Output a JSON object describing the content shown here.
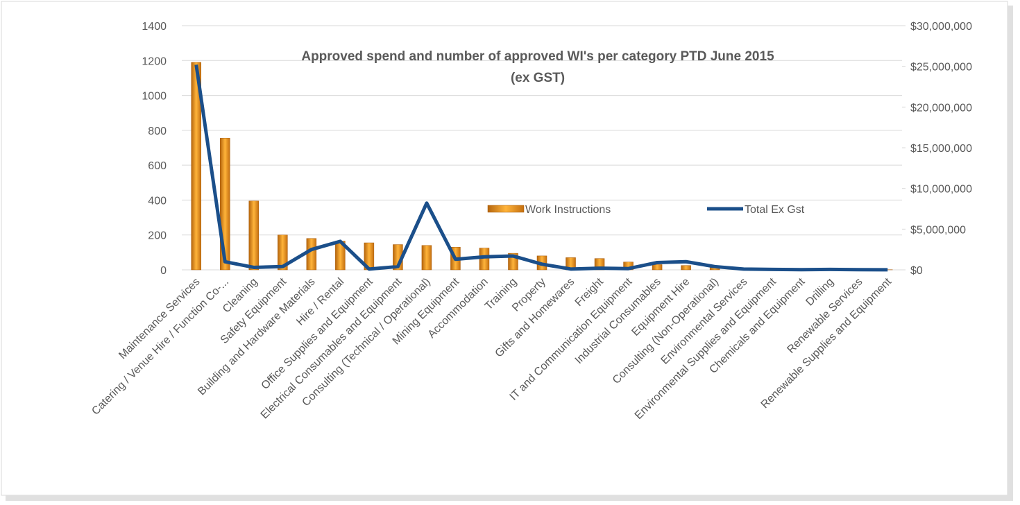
{
  "chart_data": {
    "type": "bar_line",
    "title": [
      "Approved spend and number of approved WI's per category PTD June 2015",
      "(ex GST)"
    ],
    "categories": [
      "Maintenance Services",
      "Catering / Venue Hire / Function Co-...",
      "Cleaning",
      "Safety Equipment",
      "Building and Hardware Materials",
      "Hire / Rental",
      "Office Supplies and Equipment",
      "Electrical Consumables and Equipment",
      "Consulting (Technical / Operational)",
      "Mining Equipment",
      "Accommodation",
      "Training",
      "Property",
      "Gifts and Homewares",
      "Freight",
      "IT and Communication Equipment",
      "Industrial Consumables",
      "Equipment Hire",
      "Consulting (Non-Operational)",
      "Environmental Services",
      "Environmental Supplies and Equipment",
      "Chemicals and Equipment",
      "Drilling",
      "Renewable Services",
      "Renewable Supplies and Equipment"
    ],
    "series": [
      {
        "name": "Work Instructions",
        "type": "bar",
        "color": "#f5a623",
        "values": [
          1190,
          755,
          395,
          200,
          180,
          165,
          155,
          145,
          140,
          130,
          125,
          95,
          80,
          70,
          65,
          45,
          30,
          25,
          15,
          5,
          3,
          2,
          2,
          1,
          1
        ]
      },
      {
        "name": "Total Ex Gst",
        "type": "line",
        "axis": "y2",
        "color": "#1b4f8a",
        "values": [
          25200000,
          1000000,
          300000,
          400000,
          2500000,
          3500000,
          100000,
          400000,
          8200000,
          1300000,
          1600000,
          1700000,
          700000,
          100000,
          200000,
          150000,
          900000,
          1000000,
          400000,
          100000,
          50000,
          20000,
          50000,
          20000,
          10000
        ]
      }
    ],
    "ylim": [
      0,
      1400
    ],
    "yticks": [
      0,
      200,
      400,
      600,
      800,
      1000,
      1200,
      1400
    ],
    "y2lim": [
      0,
      30000000
    ],
    "y2ticks": [
      {
        "value": 0,
        "label": "$0"
      },
      {
        "value": 5000000,
        "label": "$5,000,000"
      },
      {
        "value": 10000000,
        "label": "$10,000,000"
      },
      {
        "value": 15000000,
        "label": "$15,000,000"
      },
      {
        "value": 20000000,
        "label": "$20,000,000"
      },
      {
        "value": 25000000,
        "label": "$25,000,000"
      },
      {
        "value": 30000000,
        "label": "$30,000,000"
      }
    ],
    "grid": true,
    "legend": "center"
  }
}
